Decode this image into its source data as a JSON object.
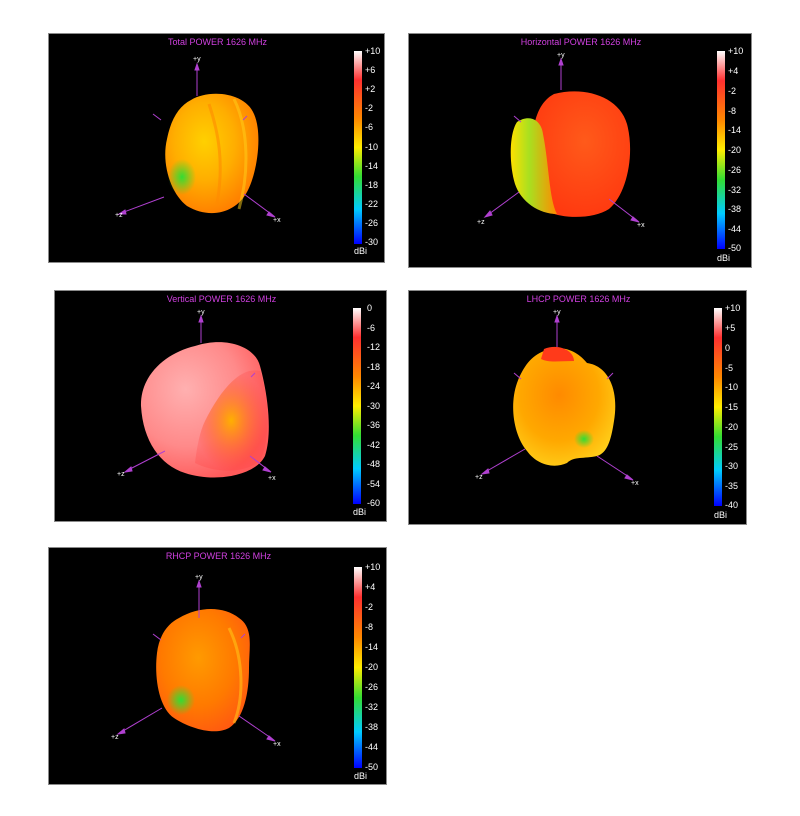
{
  "chart_data": [
    {
      "type": "other",
      "title": "Total POWER 1626  MHz",
      "colorbar": {
        "ticks": [
          "+10",
          "+6",
          "+2",
          "-2",
          "-6",
          "-10",
          "-14",
          "-18",
          "-22",
          "-26",
          "-30"
        ],
        "unit": "dBi",
        "range": [
          -30,
          10
        ]
      },
      "axes": [
        "+y",
        "+z",
        "+x"
      ]
    },
    {
      "type": "other",
      "title": "Horizontal POWER 1626  MHz",
      "colorbar": {
        "ticks": [
          "+10",
          "+4",
          "-2",
          "-8",
          "-14",
          "-20",
          "-26",
          "-32",
          "-38",
          "-44",
          "-50"
        ],
        "unit": "dBi",
        "range": [
          -50,
          10
        ]
      },
      "axes": [
        "+y",
        "+z",
        "+x"
      ]
    },
    {
      "type": "other",
      "title": "Vertical POWER 1626  MHz",
      "colorbar": {
        "ticks": [
          "0",
          "-6",
          "-12",
          "-18",
          "-24",
          "-30",
          "-36",
          "-42",
          "-48",
          "-54",
          "-60"
        ],
        "unit": "dBi",
        "range": [
          -60,
          0
        ]
      },
      "axes": [
        "+y",
        "+z",
        "+x"
      ]
    },
    {
      "type": "other",
      "title": "LHCP POWER 1626  MHz",
      "colorbar": {
        "ticks": [
          "+10",
          "+5",
          "0",
          "-5",
          "-10",
          "-15",
          "-20",
          "-25",
          "-30",
          "-35",
          "-40"
        ],
        "unit": "dBi",
        "range": [
          -40,
          10
        ]
      },
      "axes": [
        "+y",
        "+z",
        "+x"
      ]
    },
    {
      "type": "other",
      "title": "RHCP POWER 1626  MHz",
      "colorbar": {
        "ticks": [
          "+10",
          "+4",
          "-2",
          "-8",
          "-14",
          "-20",
          "-26",
          "-32",
          "-38",
          "-44",
          "-50"
        ],
        "unit": "dBi",
        "range": [
          -50,
          10
        ]
      },
      "axes": [
        "+y",
        "+z",
        "+x"
      ]
    }
  ],
  "colors": {
    "title": "#d040e0",
    "axis": "#b040d0",
    "background": "#000000",
    "colormap": [
      "#ffffff",
      "#ff3030",
      "#ff8800",
      "#ffee00",
      "#33dd33",
      "#00ccff",
      "#0000ff"
    ]
  }
}
